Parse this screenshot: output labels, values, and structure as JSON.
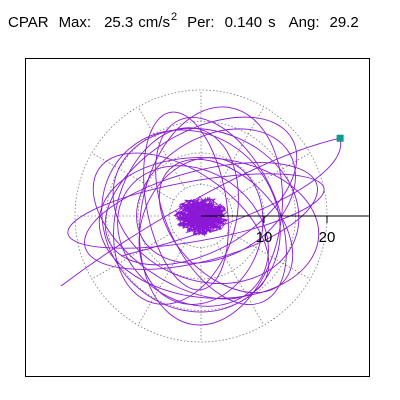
{
  "header": {
    "mode": "CPAR",
    "max_label": "Max:",
    "max_value": "25.3",
    "max_unit": "cm/s",
    "max_unit_exp": "2",
    "per_label": "Per:",
    "per_value": "0.140",
    "per_unit": "s",
    "ang_label": "Ang:",
    "ang_value": "29.2"
  },
  "chart_data": {
    "type": "polar-trace",
    "rings": [
      5,
      10,
      15,
      20
    ],
    "tick_labels": [
      "10",
      "20"
    ],
    "axis_angle_deg": 0,
    "trace_color": "#8b18d6",
    "marker_color": "#0f9b8a",
    "endpoint": {
      "magnitude": 25.3,
      "angle_deg": 29.2
    }
  }
}
